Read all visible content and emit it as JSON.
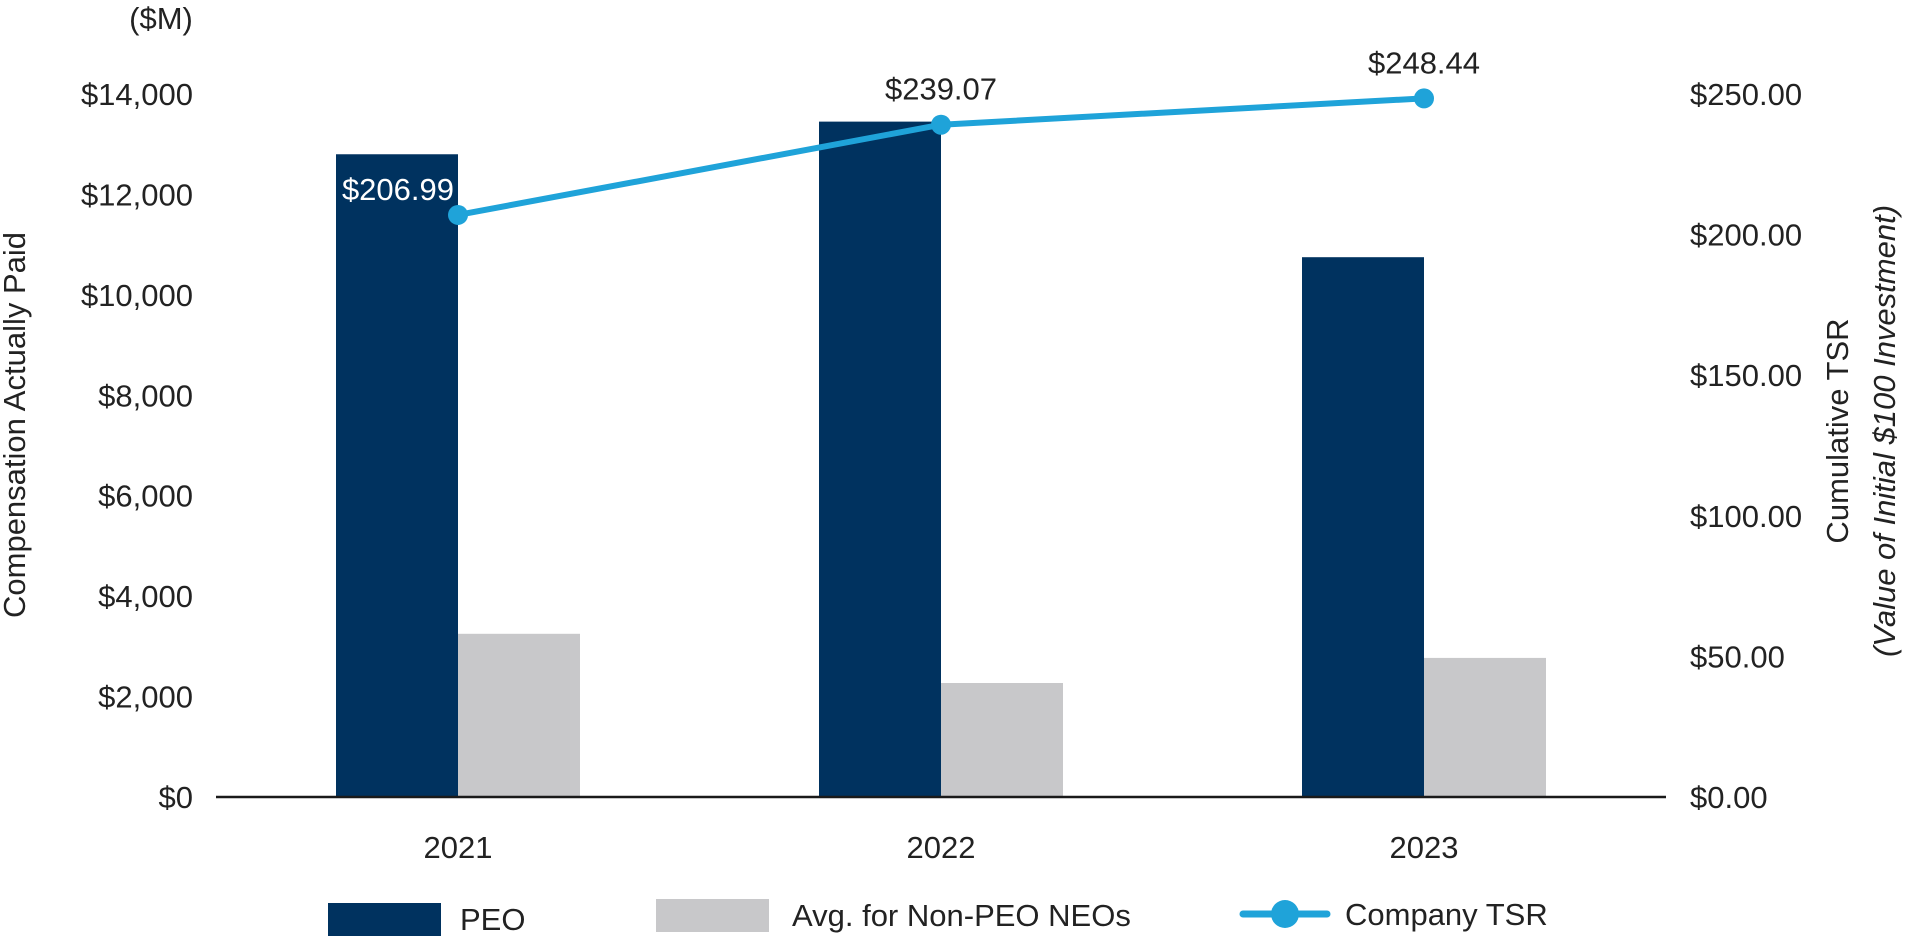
{
  "chart_data": {
    "type": "bar",
    "categories": [
      "2021",
      "2022",
      "2023"
    ],
    "y_unit_label": "($M)",
    "ylabel": "Compensation Actually Paid",
    "y2label": "Cumulative TSR",
    "y2label_sub": "(Value of Initial $100 Investment)",
    "ylim": [
      0,
      14000
    ],
    "y2lim": [
      0,
      250
    ],
    "y_ticks": [
      "$0",
      "$2,000",
      "$4,000",
      "$6,000",
      "$8,000",
      "$10,000",
      "$12,000",
      "$14,000"
    ],
    "y2_ticks": [
      "$0.00",
      "$50.00",
      "$100.00",
      "$150.00",
      "$200.00",
      "$250.00"
    ],
    "series": [
      {
        "name": "PEO",
        "type": "bar",
        "axis": "left",
        "color": "#00325f",
        "values": [
          12800,
          13450,
          10750
        ]
      },
      {
        "name": "Avg. for Non-PEO NEOs",
        "type": "bar",
        "axis": "left",
        "color": "#c8c8ca",
        "values": [
          3250,
          2270,
          2770
        ]
      },
      {
        "name": "Company TSR",
        "type": "line",
        "axis": "right",
        "color": "#1fa3d9",
        "values": [
          206.99,
          239.07,
          248.44
        ],
        "labels": [
          "$206.99",
          "$239.07",
          "$248.44"
        ]
      }
    ],
    "legend": [
      "PEO",
      "Avg. for Non-PEO NEOs",
      "Company TSR"
    ],
    "legend_position": "bottom"
  }
}
